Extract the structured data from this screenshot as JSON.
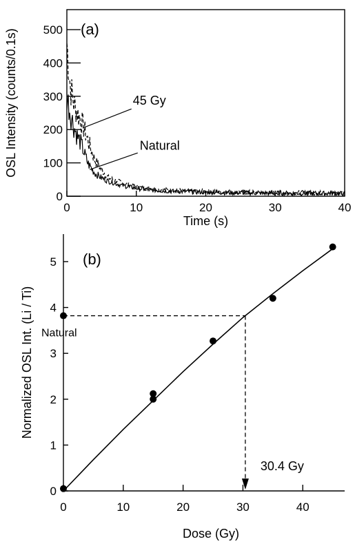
{
  "chart_data": [
    {
      "type": "line",
      "panel_label": "(a)",
      "xlabel": "Time (s)",
      "ylabel": "OSL Intensity (counts/0.1s)",
      "xlim": [
        0,
        40
      ],
      "ylim": [
        0,
        560
      ],
      "x_ticks": [
        0,
        10,
        20,
        30,
        40
      ],
      "y_ticks": [
        0,
        100,
        200,
        300,
        400,
        500
      ],
      "series": [
        {
          "name": "45 Gy",
          "style": "dashed",
          "x": [
            0,
            0.5,
            1,
            1.5,
            2,
            3,
            4,
            5,
            6,
            8,
            10,
            12,
            15,
            20,
            25,
            30,
            35,
            40
          ],
          "y": [
            460,
            330,
            280,
            250,
            230,
            170,
            110,
            80,
            55,
            40,
            28,
            22,
            18,
            14,
            12,
            11,
            10,
            10
          ]
        },
        {
          "name": "Natural",
          "style": "solid",
          "x": [
            0,
            0.5,
            1,
            1.5,
            2,
            3,
            4,
            5,
            6,
            8,
            10,
            12,
            15,
            20,
            25,
            30,
            35,
            40
          ],
          "y": [
            300,
            250,
            210,
            180,
            160,
            100,
            70,
            55,
            45,
            32,
            24,
            19,
            15,
            12,
            10,
            9,
            9,
            8
          ]
        }
      ],
      "annotations": [
        {
          "text": "45 Gy",
          "x": 9.5,
          "y": 275
        },
        {
          "text": "Natural",
          "x": 10.5,
          "y": 140
        }
      ]
    },
    {
      "type": "scatter",
      "panel_label": "(b)",
      "xlabel": "Dose (Gy)",
      "ylabel": "Normalized OSL Int. (Li / Ti)",
      "xlim": [
        0,
        47
      ],
      "ylim": [
        0,
        5.6
      ],
      "x_ticks": [
        0,
        10,
        20,
        30,
        40
      ],
      "y_ticks": [
        0,
        1,
        2,
        3,
        4,
        5
      ],
      "points": {
        "x": [
          0,
          15,
          15,
          25,
          35,
          45
        ],
        "y": [
          0.05,
          2.0,
          2.12,
          3.27,
          4.2,
          5.32
        ]
      },
      "fit": {
        "x": [
          0,
          5,
          10,
          15,
          20,
          25,
          30,
          35,
          40,
          45
        ],
        "y": [
          0.0,
          0.68,
          1.34,
          1.97,
          2.6,
          3.2,
          3.78,
          4.3,
          4.8,
          5.28
        ]
      },
      "natural_marker": {
        "text": "Natural",
        "y": 3.82
      },
      "result_label": "30.4 Gy",
      "result_dose": 30.4
    }
  ]
}
